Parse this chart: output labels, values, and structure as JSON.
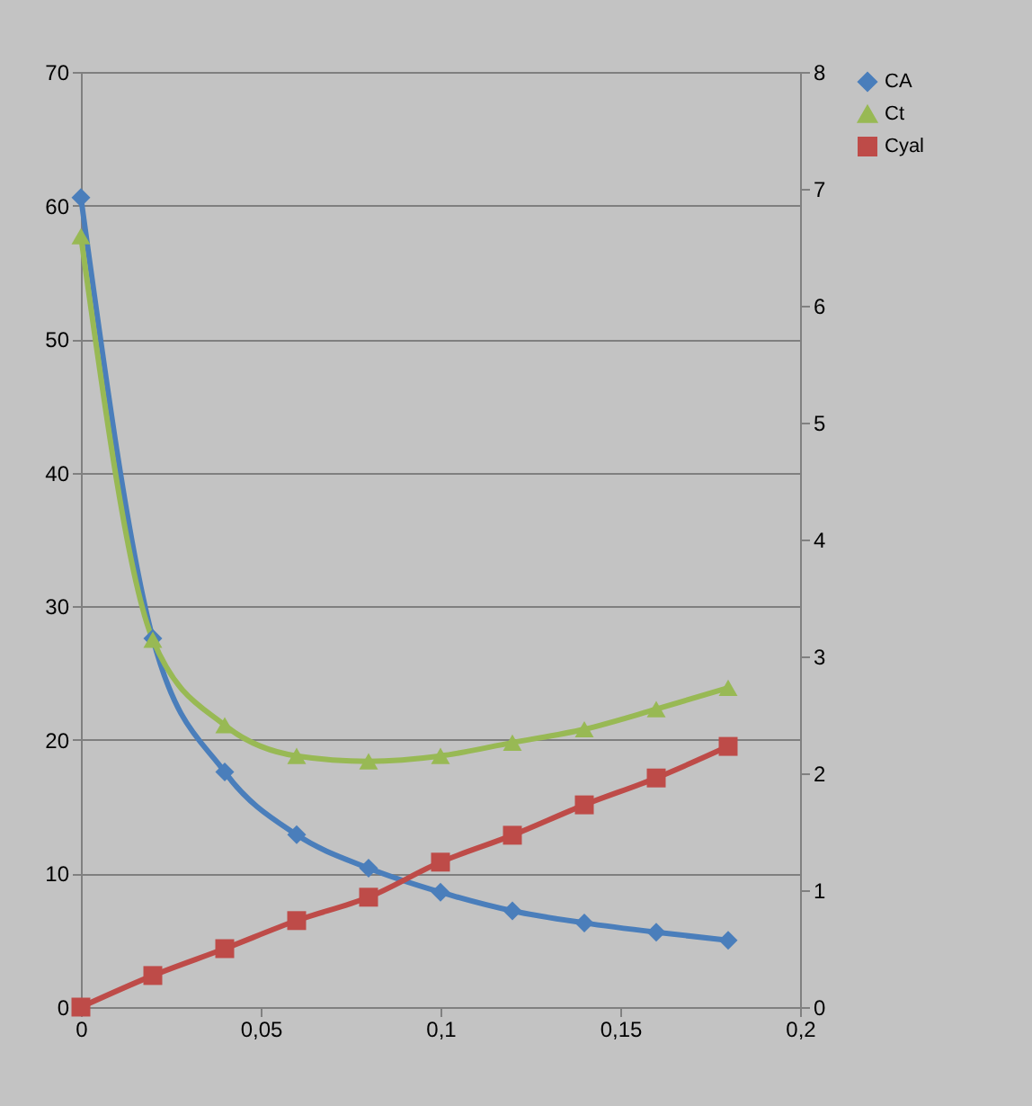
{
  "chart_data": {
    "type": "line",
    "x": [
      0,
      0.02,
      0.04,
      0.06,
      0.08,
      0.1,
      0.12,
      0.14,
      0.16,
      0.18
    ],
    "series": [
      {
        "name": "CA",
        "color": "#4a7ebb",
        "marker": "diamond",
        "values": [
          60.6,
          27.6,
          17.6,
          12.9,
          10.4,
          8.6,
          7.2,
          6.3,
          5.6,
          5.0
        ]
      },
      {
        "name": "Ct",
        "color": "#98b954",
        "marker": "triangle",
        "values": [
          57.7,
          27.5,
          21.1,
          18.8,
          18.4,
          18.8,
          19.8,
          20.8,
          22.3,
          23.9
        ]
      },
      {
        "name": "Cyal",
        "color": "#be4b48",
        "marker": "square",
        "axis": "y2",
        "values": [
          0,
          0.27,
          0.5,
          0.74,
          0.94,
          1.24,
          1.47,
          1.73,
          1.96,
          2.23
        ]
      }
    ],
    "xlim": [
      0,
      0.2
    ],
    "xticks": [
      0,
      {
        "value": 0.05,
        "label": "0,05"
      },
      {
        "value": 0.1,
        "label": "0,1"
      },
      {
        "value": 0.15,
        "label": "0,15"
      },
      {
        "value": 0.2,
        "label": "0,2"
      }
    ],
    "ylim": [
      0,
      70
    ],
    "yticks": [
      0,
      10,
      20,
      30,
      40,
      50,
      60,
      70
    ],
    "y2lim": [
      0,
      8
    ],
    "y2ticks": [
      0,
      1,
      2,
      3,
      4,
      5,
      6,
      7,
      8
    ],
    "grid": "y",
    "legend": "right"
  }
}
